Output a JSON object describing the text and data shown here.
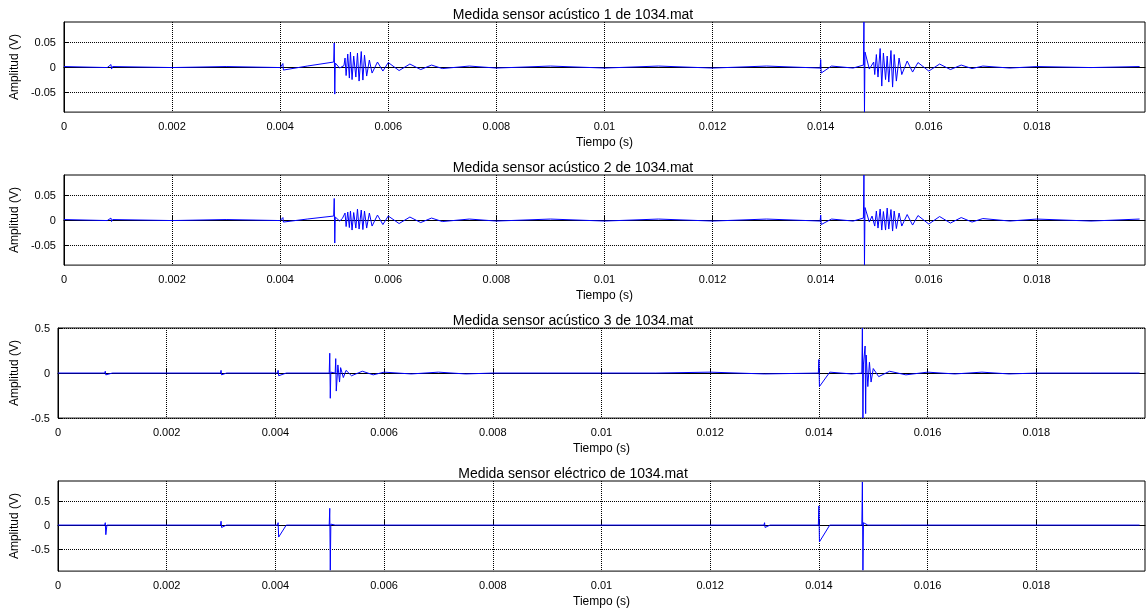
{
  "chart_data": [
    {
      "type": "line",
      "title": "Medida sensor acústico 1 de 1034.mat",
      "xlabel": "Tiempo (s)",
      "ylabel": "Amplitud (V)",
      "xlim": [
        0,
        0.02
      ],
      "xticks": [
        0,
        0.002,
        0.004,
        0.006,
        0.008,
        0.01,
        0.012,
        0.014,
        0.016,
        0.018
      ],
      "ylim": [
        -0.09,
        0.09
      ],
      "yticks": [
        -0.05,
        0,
        0.05
      ],
      "grid": true,
      "marker": "none",
      "series": [
        {
          "color": "#0000ff",
          "x": [
            0,
            0.0008,
            0.00087,
            0.00088,
            0.0009,
            0.002,
            0.003,
            0.004,
            0.00405,
            0.00406,
            0.0045,
            0.00499,
            0.005,
            0.00501,
            0.00502,
            0.0051,
            0.00518,
            0.0052,
            0.00522,
            0.00525,
            0.00528,
            0.0053,
            0.00533,
            0.00536,
            0.0054,
            0.00543,
            0.00546,
            0.0055,
            0.00553,
            0.00556,
            0.0056,
            0.00565,
            0.0057,
            0.0058,
            0.0059,
            0.006,
            0.0062,
            0.0064,
            0.0066,
            0.0068,
            0.007,
            0.0075,
            0.008,
            0.009,
            0.01,
            0.011,
            0.012,
            0.013,
            0.01399,
            0.014,
            0.01401,
            0.0142,
            0.0146,
            0.01479,
            0.0148,
            0.01481,
            0.01482,
            0.0149,
            0.01498,
            0.015,
            0.01503,
            0.01506,
            0.0151,
            0.01513,
            0.01516,
            0.0152,
            0.01523,
            0.01526,
            0.0153,
            0.01533,
            0.01536,
            0.0154,
            0.01545,
            0.0155,
            0.0156,
            0.0157,
            0.0158,
            0.016,
            0.0162,
            0.0164,
            0.0166,
            0.0168,
            0.017,
            0.0175,
            0.018,
            0.019,
            0.0199
          ],
          "values": [
            0.001,
            -0.001,
            0.005,
            -0.004,
            0.001,
            -0.001,
            0.001,
            -0.001,
            0.007,
            -0.006,
            0.002,
            0.01,
            0.048,
            -0.054,
            0.008,
            -0.002,
            0.003,
            0.018,
            -0.017,
            0.026,
            -0.022,
            0.03,
            -0.025,
            0.022,
            -0.02,
            0.028,
            -0.028,
            0.031,
            -0.026,
            0.024,
            -0.018,
            0.014,
            -0.012,
            0.01,
            -0.008,
            0.009,
            -0.007,
            0.006,
            -0.005,
            0.004,
            -0.003,
            0.002,
            -0.002,
            0.002,
            -0.002,
            0.002,
            -0.002,
            0.002,
            -0.002,
            0.015,
            -0.012,
            0.002,
            -0.002,
            0.004,
            0.09,
            -0.09,
            0.03,
            -0.004,
            0.01,
            -0.015,
            0.025,
            -0.02,
            0.037,
            -0.038,
            0.028,
            -0.025,
            0.022,
            -0.03,
            0.033,
            -0.04,
            0.025,
            -0.028,
            0.018,
            -0.015,
            0.012,
            -0.01,
            0.009,
            -0.008,
            0.006,
            -0.005,
            0.004,
            -0.003,
            0.002,
            -0.002,
            0.001,
            -0.001,
            0.001
          ]
        }
      ]
    },
    {
      "type": "line",
      "title": "Medida sensor acústico 2 de 1034.mat",
      "xlabel": "Tiempo (s)",
      "ylabel": "Amplitud (V)",
      "xlim": [
        0,
        0.02
      ],
      "xticks": [
        0,
        0.002,
        0.004,
        0.006,
        0.008,
        0.01,
        0.012,
        0.014,
        0.016,
        0.018
      ],
      "ylim": [
        -0.09,
        0.09
      ],
      "yticks": [
        -0.05,
        0,
        0.05
      ],
      "grid": true,
      "marker": "none",
      "series": [
        {
          "color": "#0000ff",
          "x": [
            0,
            0.0008,
            0.00087,
            0.00088,
            0.0009,
            0.002,
            0.003,
            0.004,
            0.00405,
            0.00406,
            0.0045,
            0.00499,
            0.005,
            0.00501,
            0.00502,
            0.0051,
            0.00515,
            0.0052,
            0.00522,
            0.00525,
            0.00528,
            0.0053,
            0.00533,
            0.00536,
            0.0054,
            0.00543,
            0.00546,
            0.0055,
            0.00553,
            0.00556,
            0.0056,
            0.00565,
            0.0057,
            0.0058,
            0.0059,
            0.006,
            0.0062,
            0.0064,
            0.0066,
            0.0068,
            0.007,
            0.0075,
            0.008,
            0.009,
            0.01,
            0.011,
            0.012,
            0.013,
            0.01399,
            0.014,
            0.01401,
            0.0142,
            0.0146,
            0.01479,
            0.0148,
            0.01481,
            0.01482,
            0.0149,
            0.01495,
            0.015,
            0.01503,
            0.01506,
            0.0151,
            0.01513,
            0.01516,
            0.0152,
            0.01523,
            0.01526,
            0.0153,
            0.01533,
            0.01536,
            0.0154,
            0.01545,
            0.0155,
            0.0156,
            0.0157,
            0.0158,
            0.016,
            0.0162,
            0.0164,
            0.0166,
            0.0168,
            0.017,
            0.0175,
            0.018,
            0.019,
            0.0199
          ],
          "values": [
            0.001,
            -0.001,
            0.004,
            -0.003,
            0.001,
            -0.001,
            0.001,
            -0.001,
            0.005,
            -0.004,
            0.002,
            0.008,
            0.043,
            -0.046,
            0.006,
            -0.002,
            0.003,
            0.014,
            -0.013,
            0.016,
            -0.015,
            0.018,
            -0.02,
            0.015,
            -0.016,
            0.022,
            -0.018,
            0.02,
            -0.019,
            0.018,
            -0.016,
            0.014,
            -0.012,
            0.01,
            -0.009,
            0.008,
            -0.007,
            0.006,
            -0.005,
            0.004,
            -0.003,
            0.002,
            -0.002,
            0.002,
            -0.002,
            0.002,
            -0.002,
            0.002,
            -0.002,
            0.01,
            -0.009,
            0.002,
            -0.002,
            0.004,
            0.09,
            -0.09,
            0.025,
            -0.004,
            0.008,
            -0.012,
            0.018,
            -0.016,
            0.022,
            -0.02,
            0.017,
            -0.02,
            0.024,
            -0.018,
            0.021,
            -0.022,
            0.018,
            -0.017,
            0.014,
            -0.012,
            0.011,
            -0.01,
            0.009,
            -0.008,
            0.007,
            -0.006,
            0.005,
            -0.004,
            0.003,
            -0.002,
            0.002,
            -0.002,
            0.002
          ]
        }
      ]
    },
    {
      "type": "line",
      "title": "Medida sensor acústico 3 de 1034.mat",
      "xlabel": "Tiempo (s)",
      "ylabel": "Amplitud (V)",
      "xlim": [
        0,
        0.02
      ],
      "xticks": [
        0,
        0.002,
        0.004,
        0.006,
        0.008,
        0.01,
        0.012,
        0.014,
        0.016,
        0.018
      ],
      "ylim": [
        -0.5,
        0.5
      ],
      "yticks": [
        -0.5,
        0,
        0.5
      ],
      "grid": true,
      "marker": "none",
      "series": [
        {
          "color": "#0000ff",
          "x": [
            0,
            0.00086,
            0.00087,
            0.00088,
            0.001,
            0.00299,
            0.003,
            0.00301,
            0.0031,
            0.00404,
            0.00405,
            0.00406,
            0.0042,
            0.00499,
            0.005,
            0.00501,
            0.00502,
            0.0051,
            0.00511,
            0.00512,
            0.00515,
            0.00518,
            0.0052,
            0.00525,
            0.0053,
            0.0054,
            0.0056,
            0.0058,
            0.006,
            0.0065,
            0.007,
            0.0075,
            0.008,
            0.009,
            0.01,
            0.011,
            0.012,
            0.013,
            0.01399,
            0.014,
            0.01401,
            0.0142,
            0.0146,
            0.01479,
            0.0148,
            0.01481,
            0.01482,
            0.01485,
            0.01486,
            0.01487,
            0.0149,
            0.01493,
            0.01496,
            0.015,
            0.0151,
            0.0153,
            0.0156,
            0.016,
            0.0165,
            0.017,
            0.0175,
            0.018,
            0.019,
            0.0199
          ],
          "values": [
            0,
            0,
            0.02,
            -0.02,
            0,
            0,
            0.03,
            -0.02,
            0,
            0,
            0.03,
            -0.03,
            0,
            0,
            0.22,
            -0.28,
            0.01,
            0,
            0.16,
            -0.2,
            0.09,
            -0.1,
            0.06,
            -0.05,
            0.03,
            -0.03,
            0.02,
            -0.02,
            0.01,
            -0.01,
            0.01,
            -0.01,
            0,
            0,
            0,
            0,
            0.01,
            -0.01,
            0,
            0.15,
            -0.15,
            0.01,
            -0.01,
            0,
            0.5,
            -0.5,
            0.1,
            0.3,
            -0.45,
            0.2,
            -0.15,
            0.12,
            -0.1,
            0.05,
            -0.04,
            0.02,
            -0.02,
            0.01,
            -0.01,
            0.01,
            -0.01,
            0,
            0,
            0
          ]
        }
      ]
    },
    {
      "type": "line",
      "title": "Medida sensor eléctrico de 1034.mat",
      "xlabel": "Tiempo (s)",
      "ylabel": "Amplitud (V)",
      "xlim": [
        0,
        0.02
      ],
      "xticks": [
        0,
        0.002,
        0.004,
        0.006,
        0.008,
        0.01,
        0.012,
        0.014,
        0.016,
        0.018
      ],
      "ylim": [
        -0.96,
        0.92
      ],
      "yticks": [
        -0.5,
        0,
        0.5
      ],
      "grid": true,
      "marker": "none",
      "series": [
        {
          "color": "#0000ff",
          "x": [
            0,
            0.00086,
            0.00087,
            0.00088,
            0.0009,
            0.00299,
            0.003,
            0.00301,
            0.0031,
            0.00404,
            0.00405,
            0.00406,
            0.0042,
            0.00499,
            0.005,
            0.00501,
            0.00502,
            0.0051,
            0.01299,
            0.013,
            0.01301,
            0.0131,
            0.01399,
            0.014,
            0.01401,
            0.0142,
            0.01479,
            0.0148,
            0.01481,
            0.01482,
            0.0149,
            0.0155,
            0.017,
            0.0199
          ],
          "values": [
            0,
            0,
            0.05,
            -0.2,
            0,
            0,
            0.08,
            -0.05,
            0,
            0,
            0.05,
            -0.25,
            0,
            0,
            0.35,
            -0.94,
            0.02,
            0,
            0,
            0.05,
            -0.05,
            0,
            0,
            0.4,
            -0.35,
            0,
            0,
            0.9,
            -0.94,
            0.05,
            0,
            0,
            0,
            0
          ]
        }
      ]
    }
  ]
}
